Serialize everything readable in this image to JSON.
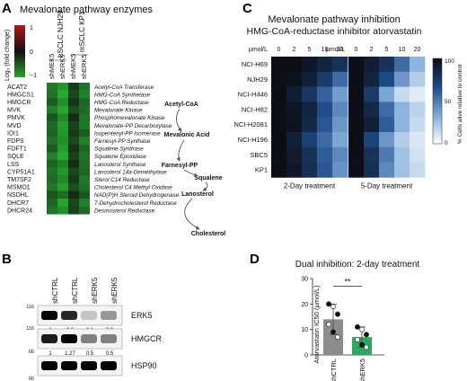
{
  "panels": {
    "a": {
      "letter": "A",
      "title": "Mevalonate pathway enzymes",
      "colorbar": {
        "label": "Log₂ (fold change)",
        "ticks": [
          "1",
          "0",
          "−1"
        ]
      },
      "columns": [
        "shMEK5",
        "shERK5",
        "shMEK5",
        "shERK5"
      ],
      "groups": [
        "hSCLC NJH29",
        "mSCLC KP1"
      ],
      "genes": [
        "ACAT2",
        "HMGCS1",
        "HMGCR",
        "MVK",
        "PMVK",
        "MVD",
        "IDI1",
        "FDPS",
        "FDFT1",
        "SQLE",
        "LSS",
        "CYP51A1",
        "TM7SF2",
        "MSMO1",
        "NSDHL",
        "DHCR7",
        "DHCR24"
      ],
      "enzymes": [
        "Acetyl-CoA Transferase",
        "HMG-CoA Synthetase",
        "HMG-CoA Reductase",
        "Mevalonate Kinase",
        "Phosphomevalonate Kinase",
        "Mevalonate-PP Decarboxylase",
        "Isopentenyl-PP Isomerase",
        "Farnesyl-PP Synthase",
        "Squalene Synthase",
        "Squalene Epoxidase",
        "Lanosterol Synthase",
        "Lanosterol 14a-Demethylase",
        "Sterol C14 Reductase",
        "Cholesterol C4 Methyl Oxidase",
        "NAD(P)H Steroid Dehydrogenase",
        "7-Dehydrocholesterol Reductase",
        "Desmosterol Reductase"
      ],
      "heat": [
        [
          -0.65,
          -0.85,
          -0.2,
          -0.6
        ],
        [
          -0.6,
          -1.0,
          -0.3,
          -0.7
        ],
        [
          -0.45,
          -0.8,
          -0.15,
          -0.5
        ],
        [
          -0.7,
          -0.95,
          -0.35,
          -0.55
        ],
        [
          -0.4,
          -0.75,
          -0.1,
          -0.6
        ],
        [
          -0.55,
          -0.9,
          -0.25,
          -0.65
        ],
        [
          -0.5,
          -0.85,
          -0.2,
          -0.45
        ],
        [
          -0.6,
          -0.8,
          -0.3,
          -0.7
        ],
        [
          -0.45,
          -0.9,
          -0.15,
          -0.5
        ],
        [
          -0.7,
          -1.0,
          -0.25,
          -0.6
        ],
        [
          -0.5,
          -0.7,
          -0.1,
          -0.55
        ],
        [
          -0.6,
          -0.85,
          -0.3,
          -0.5
        ],
        [
          -0.55,
          -0.75,
          -0.2,
          -0.65
        ],
        [
          -0.65,
          -0.9,
          -0.35,
          -0.6
        ],
        [
          -0.4,
          -0.55,
          -0.1,
          -0.4
        ],
        [
          -0.5,
          -0.95,
          -0.3,
          -0.7
        ],
        [
          -0.6,
          -0.8,
          -0.25,
          -0.55
        ]
      ],
      "pathway": [
        "Acetyl-CoA",
        "Mevalonic Acid",
        "Farnesyl-PP",
        "Squalene",
        "Lanosterol",
        "Cholesterol"
      ]
    },
    "b": {
      "letter": "B",
      "lanes": [
        "shCTRL",
        "shCTRL",
        "shERK5",
        "shERK5"
      ],
      "blots": [
        {
          "name": "ERK5",
          "marker": "116",
          "quant": [
            "1",
            "0.8",
            "0.1",
            "0.3"
          ],
          "intensity": [
            1.0,
            0.85,
            0.15,
            0.35
          ]
        },
        {
          "name": "HMGCR",
          "marker": "66",
          "quant": [
            "1",
            "1.27",
            "0.5",
            "0.5"
          ],
          "intensity": [
            0.9,
            1.0,
            0.45,
            0.45
          ]
        },
        {
          "name": "HSP90",
          "marker": "66",
          "quant": [],
          "intensity": [
            1.0,
            1.0,
            1.0,
            1.0
          ]
        }
      ],
      "top_marker": "116"
    },
    "c": {
      "letter": "C",
      "title1": "Mevalonate pathway inhibition",
      "title2": "HMG-CoA-reductase inhibitor atorvastatin",
      "dose_label": "µmol/L",
      "doses": [
        "0",
        "2",
        "5",
        "10",
        "20"
      ],
      "cells": [
        "NCI-H69",
        "NJH29",
        "NCI-H446",
        "NCI-H82",
        "NCI-H2081",
        "NCI-H196",
        "SBC5",
        "KP1"
      ],
      "heat2": [
        [
          100,
          100,
          95,
          88,
          80
        ],
        [
          100,
          98,
          90,
          75,
          55
        ],
        [
          100,
          92,
          78,
          58,
          38
        ],
        [
          100,
          96,
          88,
          65,
          45
        ],
        [
          100,
          97,
          85,
          62,
          40
        ],
        [
          100,
          90,
          72,
          55,
          35
        ],
        [
          100,
          93,
          80,
          60,
          45
        ],
        [
          100,
          95,
          82,
          62,
          42
        ]
      ],
      "heat5": [
        [
          100,
          92,
          80,
          55,
          30
        ],
        [
          100,
          88,
          68,
          40,
          20
        ],
        [
          100,
          75,
          35,
          15,
          8
        ],
        [
          100,
          85,
          55,
          30,
          18
        ],
        [
          100,
          90,
          60,
          30,
          15
        ],
        [
          100,
          70,
          40,
          20,
          10
        ],
        [
          100,
          80,
          50,
          25,
          12
        ],
        [
          100,
          82,
          45,
          25,
          15
        ]
      ],
      "label2": "2-Day treatment",
      "label5": "5-Day treatment",
      "colorbar": {
        "label": "% Cells alive relative to control",
        "ticks": [
          "100",
          "50",
          "0"
        ]
      }
    },
    "d": {
      "letter": "D",
      "title": "Dual inhibition: 2-day treatment",
      "ylabel": "Atorvastatin IC50 (µmol/L)",
      "yticks": [
        "0",
        "10",
        "20",
        "30"
      ],
      "categories": [
        "shCTRL",
        "shERK5"
      ],
      "significance": "**",
      "chart_data": {
        "type": "bar",
        "categories": [
          "shCTRL",
          "shERK5"
        ],
        "values": [
          14,
          7
        ],
        "errors": [
          6,
          4
        ],
        "ylim": [
          0,
          30
        ],
        "points": [
          [
            20,
            19,
            16,
            12,
            9,
            7
          ],
          [
            11,
            10,
            8,
            6,
            4,
            3
          ]
        ]
      }
    }
  }
}
